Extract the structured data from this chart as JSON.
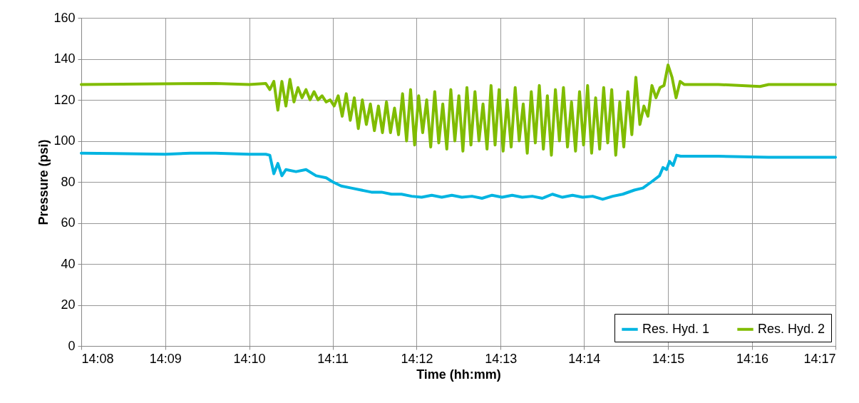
{
  "chart_data": {
    "type": "line",
    "xlabel": "Time (hh:mm)",
    "ylabel": "Pressure (psi)",
    "xlim": [
      14.1333,
      14.2833
    ],
    "xticks": [
      {
        "value": 14.1333,
        "label": "14:08"
      },
      {
        "value": 14.15,
        "label": "14:09"
      },
      {
        "value": 14.1667,
        "label": "14:10"
      },
      {
        "value": 14.1833,
        "label": "14:11"
      },
      {
        "value": 14.2,
        "label": "14:12"
      },
      {
        "value": 14.2167,
        "label": "14:13"
      },
      {
        "value": 14.2333,
        "label": "14:14"
      },
      {
        "value": 14.25,
        "label": "14:15"
      },
      {
        "value": 14.2667,
        "label": "14:16"
      },
      {
        "value": 14.2833,
        "label": "14:17"
      }
    ],
    "ylim": [
      0,
      160
    ],
    "yticks": [
      0,
      20,
      40,
      60,
      80,
      100,
      120,
      140,
      160
    ],
    "grid": true,
    "legend": "bottom right",
    "line_style": "solid",
    "series": [
      {
        "name": "Res. Hyd. 1",
        "color": "#00b4e1",
        "x": [
          14.1333,
          14.14,
          14.15,
          14.155,
          14.16,
          14.1667,
          14.17,
          14.1708,
          14.1716,
          14.1724,
          14.1732,
          14.174,
          14.176,
          14.178,
          14.18,
          14.182,
          14.1833,
          14.185,
          14.187,
          14.189,
          14.191,
          14.193,
          14.195,
          14.197,
          14.199,
          14.201,
          14.203,
          14.205,
          14.207,
          14.209,
          14.211,
          14.213,
          14.215,
          14.217,
          14.219,
          14.221,
          14.223,
          14.225,
          14.227,
          14.229,
          14.231,
          14.233,
          14.235,
          14.237,
          14.239,
          14.241,
          14.2433,
          14.245,
          14.2467,
          14.2483,
          14.249,
          14.2497,
          14.2503,
          14.251,
          14.2517,
          14.2525,
          14.26,
          14.27,
          14.2833
        ],
        "values": [
          94,
          93.8,
          93.5,
          94,
          94,
          93.5,
          93.5,
          93,
          84,
          89,
          83,
          86,
          85,
          86,
          83,
          82,
          80,
          78,
          77,
          76,
          75,
          75,
          74,
          74,
          73,
          72.5,
          73.5,
          72.5,
          73.5,
          72.5,
          73,
          72,
          73.5,
          72.5,
          73.5,
          72.5,
          73,
          72,
          74,
          72.5,
          73.5,
          72.5,
          73,
          71.5,
          73,
          74,
          76,
          77,
          80,
          83,
          87,
          86,
          90,
          88,
          93,
          92.5,
          92.5,
          92,
          92
        ]
      },
      {
        "name": "Res. Hyd. 2",
        "color": "#80bc00",
        "x": [
          14.1333,
          14.16,
          14.1667,
          14.17,
          14.1708,
          14.1716,
          14.1724,
          14.1732,
          14.174,
          14.1748,
          14.1756,
          14.1764,
          14.1772,
          14.178,
          14.1788,
          14.1796,
          14.1804,
          14.1812,
          14.182,
          14.1828,
          14.1836,
          14.1844,
          14.1852,
          14.186,
          14.1868,
          14.1876,
          14.1884,
          14.1892,
          14.19,
          14.1908,
          14.1916,
          14.1924,
          14.1932,
          14.194,
          14.1948,
          14.1956,
          14.1964,
          14.1972,
          14.198,
          14.1988,
          14.1996,
          14.2004,
          14.2012,
          14.202,
          14.2028,
          14.2036,
          14.2044,
          14.2052,
          14.206,
          14.2068,
          14.2076,
          14.2084,
          14.2092,
          14.21,
          14.2108,
          14.2116,
          14.2124,
          14.2132,
          14.214,
          14.2148,
          14.2156,
          14.2164,
          14.2172,
          14.218,
          14.2188,
          14.2196,
          14.2204,
          14.2212,
          14.222,
          14.2228,
          14.2236,
          14.2244,
          14.2252,
          14.226,
          14.2268,
          14.2276,
          14.2284,
          14.2292,
          14.23,
          14.2308,
          14.2316,
          14.2324,
          14.2332,
          14.234,
          14.2348,
          14.2356,
          14.2364,
          14.2372,
          14.238,
          14.2388,
          14.2396,
          14.2404,
          14.2412,
          14.242,
          14.2428,
          14.2436,
          14.2444,
          14.2452,
          14.246,
          14.2468,
          14.2476,
          14.2484,
          14.2492,
          14.25,
          14.2508,
          14.2516,
          14.2524,
          14.2532,
          14.255,
          14.26,
          14.2683,
          14.27,
          14.2833
        ],
        "values": [
          127.5,
          128,
          127.5,
          128,
          125,
          129,
          115,
          129,
          117,
          130,
          119,
          126,
          121,
          125,
          120,
          124,
          120,
          122,
          119,
          120,
          117,
          122,
          112,
          123,
          110,
          121,
          106,
          120,
          108,
          118,
          105,
          117,
          104,
          119,
          104,
          116,
          103,
          123,
          100,
          125,
          98,
          122,
          104,
          120,
          97,
          124,
          99,
          118,
          96,
          125,
          100,
          122,
          95,
          126,
          98,
          124,
          100,
          118,
          96,
          127,
          98,
          125,
          95,
          120,
          97,
          126,
          100,
          118,
          94,
          124,
          99,
          127,
          96,
          122,
          93,
          125,
          100,
          126,
          97,
          119,
          95,
          124,
          98,
          127,
          94,
          121,
          96,
          126,
          99,
          125,
          93,
          119,
          97,
          124,
          103,
          131,
          108,
          117,
          112,
          127,
          121,
          126,
          127,
          137,
          131,
          121,
          129,
          127.5,
          127.5,
          127.5,
          126.5,
          127.5,
          127.5
        ]
      }
    ]
  }
}
